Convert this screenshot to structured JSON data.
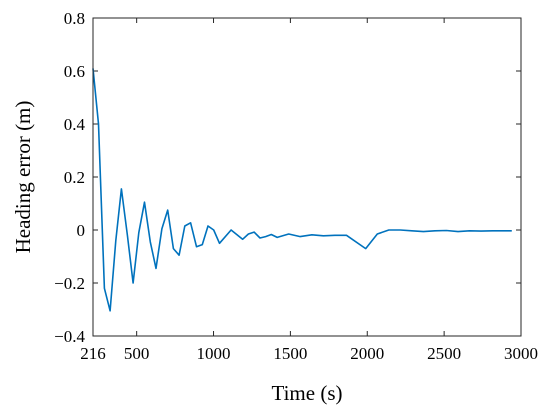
{
  "chart_data": {
    "type": "line",
    "title": "",
    "xlabel": "Time (s)",
    "ylabel": "Heading error (m)",
    "xlim": [
      216,
      3000
    ],
    "ylim": [
      -0.4,
      0.8
    ],
    "grid": false,
    "legend": "none",
    "line_color": "#0072BD",
    "x_ticks": [
      216,
      500,
      1000,
      1500,
      2000,
      2500,
      3000
    ],
    "x_tick_labels": [
      "216",
      "500",
      "1000",
      "1500",
      "2000",
      "2500",
      "3000"
    ],
    "y_ticks": [
      -0.4,
      -0.2,
      0,
      0.2,
      0.4,
      0.6,
      0.8
    ],
    "y_tick_labels": [
      "−0.4",
      "−0.2",
      "0",
      "0.2",
      "0.4",
      "0.6",
      "0.8"
    ],
    "series": [
      {
        "x": [
          216,
          252,
          290,
          327,
          364,
          401,
          440,
          477,
          514,
          551,
          589,
          626,
          664,
          702,
          739,
          776,
          813,
          851,
          889,
          927,
          964,
          1001,
          1039,
          1114,
          1189,
          1227,
          1264,
          1302,
          1339,
          1376,
          1414,
          1489,
          1564,
          1640,
          1715,
          1790,
          1865,
          1990,
          2065,
          2140,
          2215,
          2290,
          2365,
          2440,
          2515,
          2590,
          2665,
          2740,
          2815,
          2940
        ],
        "y": [
          0.61,
          0.4,
          -0.22,
          -0.305,
          -0.04,
          0.155,
          -0.02,
          -0.2,
          -0.01,
          0.105,
          -0.045,
          -0.145,
          0.005,
          0.075,
          -0.07,
          -0.095,
          0.015,
          0.027,
          -0.063,
          -0.055,
          0.015,
          0.0,
          -0.05,
          0.0,
          -0.035,
          -0.015,
          -0.008,
          -0.03,
          -0.025,
          -0.017,
          -0.028,
          -0.015,
          -0.025,
          -0.018,
          -0.022,
          -0.02,
          -0.02,
          -0.07,
          -0.015,
          0.0,
          0.0,
          -0.003,
          -0.006,
          -0.003,
          -0.002,
          -0.006,
          -0.003,
          -0.004,
          -0.003,
          -0.003
        ]
      }
    ]
  }
}
